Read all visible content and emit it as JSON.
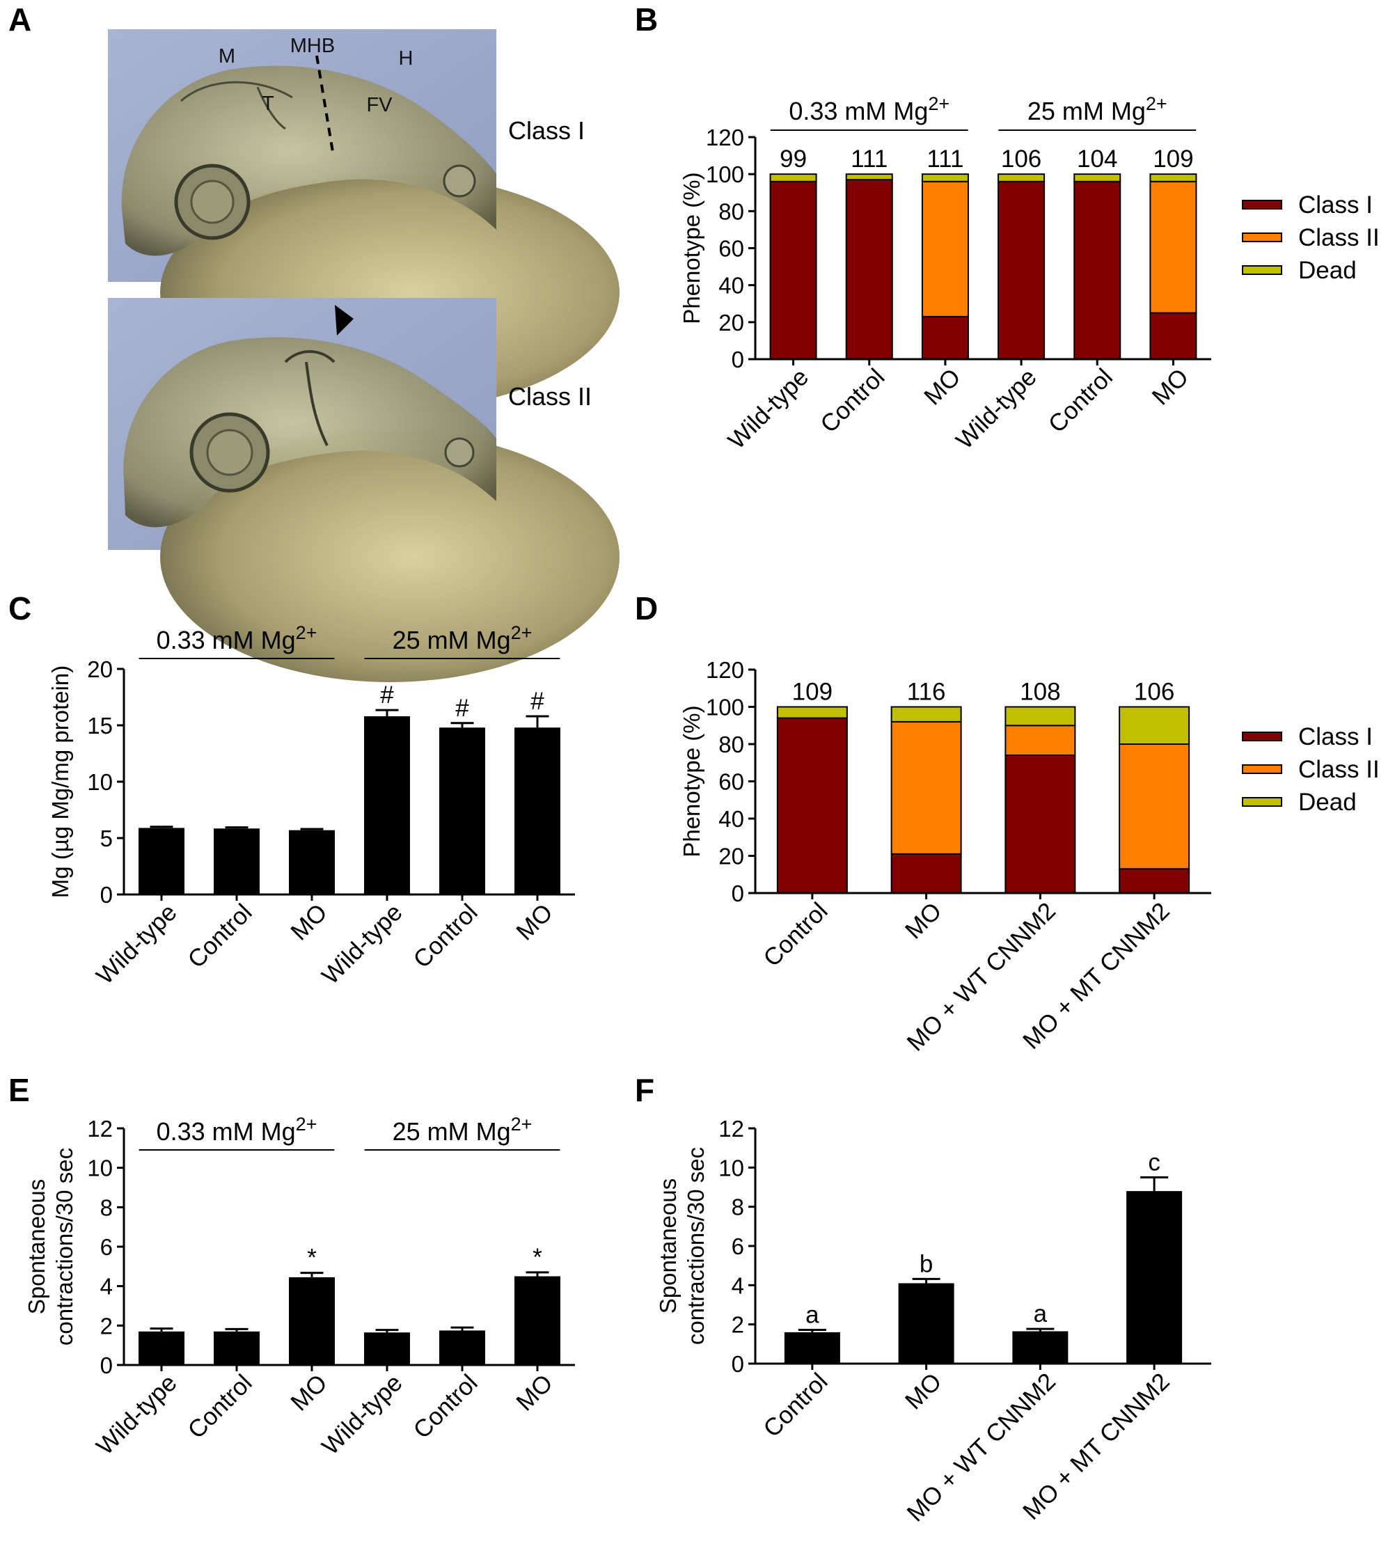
{
  "panel_labels": [
    "A",
    "B",
    "C",
    "D",
    "E",
    "F"
  ],
  "panel_a": {
    "image_labels": [
      "M",
      "MHB",
      "H",
      "T",
      "FV"
    ],
    "class_labels": [
      "Class I",
      "Class II"
    ]
  },
  "colors": {
    "class_i": "#800000",
    "class_ii": "#ff8000",
    "dead": "#c0c000",
    "bar": "#000000"
  },
  "chart_data": [
    {
      "panel": "B",
      "type": "bar",
      "stacked": true,
      "ylabel": "Phenotype (%)",
      "ylim": [
        0,
        120
      ],
      "yticks": [
        0,
        20,
        40,
        60,
        80,
        100,
        120
      ],
      "categories": [
        "Wild-type",
        "Control",
        "MO",
        "Wild-type",
        "Control",
        "MO"
      ],
      "groups": [
        {
          "label": "0.33 mM Mg",
          "sup": "2+"
        },
        {
          "label": "25 mM Mg",
          "sup": "2+"
        }
      ],
      "n_labels": [
        "99",
        "111",
        "111",
        "106",
        "104",
        "109"
      ],
      "series": [
        {
          "name": "Class I",
          "values": [
            96,
            97,
            23,
            96,
            96,
            25
          ]
        },
        {
          "name": "Class II",
          "values": [
            0,
            0,
            73,
            0,
            0,
            71
          ]
        },
        {
          "name": "Dead",
          "values": [
            4,
            3,
            4,
            4,
            4,
            4
          ]
        }
      ],
      "legend": "right"
    },
    {
      "panel": "C",
      "type": "bar",
      "ylabel": "Mg (µg Mg/mg protein)",
      "ylim": [
        0,
        20
      ],
      "yticks": [
        0,
        5,
        10,
        15,
        20
      ],
      "categories": [
        "Wild-type",
        "Control",
        "MO",
        "Wild-type",
        "Control",
        "MO"
      ],
      "groups": [
        {
          "label": "0.33 mM Mg",
          "sup": "2+"
        },
        {
          "label": "25 mM Mg",
          "sup": "2+"
        }
      ],
      "values": [
        5.9,
        5.85,
        5.7,
        15.8,
        14.8,
        14.8
      ],
      "errors": [
        0.1,
        0.1,
        0.1,
        0.55,
        0.4,
        1.0
      ],
      "annotations": [
        "",
        "",
        "",
        "#",
        "#",
        "#"
      ]
    },
    {
      "panel": "D",
      "type": "bar",
      "stacked": true,
      "ylabel": "Phenotype (%)",
      "ylim": [
        0,
        120
      ],
      "yticks": [
        0,
        20,
        40,
        60,
        80,
        100,
        120
      ],
      "categories": [
        "Control",
        "MO",
        "MO + WT CNNM2",
        "MO + MT CNNM2"
      ],
      "n_labels": [
        "109",
        "116",
        "108",
        "106"
      ],
      "series": [
        {
          "name": "Class I",
          "values": [
            94,
            21,
            74,
            13
          ]
        },
        {
          "name": "Class II",
          "values": [
            0,
            71,
            16,
            67
          ]
        },
        {
          "name": "Dead",
          "values": [
            6,
            8,
            10,
            20
          ]
        }
      ],
      "legend": "right"
    },
    {
      "panel": "E",
      "type": "bar",
      "ylabel": [
        "Spontaneous",
        "contractions/30 sec"
      ],
      "ylim": [
        0,
        12
      ],
      "yticks": [
        0,
        2,
        4,
        6,
        8,
        10,
        12
      ],
      "categories": [
        "Wild-type",
        "Control",
        "MO",
        "Wild-type",
        "Control",
        "MO"
      ],
      "groups": [
        {
          "label": "0.33 mM Mg",
          "sup": "2+"
        },
        {
          "label": "25 mM Mg",
          "sup": "2+"
        }
      ],
      "values": [
        1.7,
        1.7,
        4.45,
        1.65,
        1.75,
        4.5
      ],
      "errors": [
        0.15,
        0.12,
        0.22,
        0.13,
        0.15,
        0.2
      ],
      "annotations": [
        "",
        "",
        "*",
        "",
        "",
        "*"
      ]
    },
    {
      "panel": "F",
      "type": "bar",
      "ylabel": [
        "Spontaneous",
        "contractions/30 sec"
      ],
      "ylim": [
        0,
        12
      ],
      "yticks": [
        0,
        2,
        4,
        6,
        8,
        10,
        12
      ],
      "categories": [
        "Control",
        "MO",
        "MO + WT CNNM2",
        "MO + MT CNNM2"
      ],
      "values": [
        1.6,
        4.1,
        1.65,
        8.8
      ],
      "errors": [
        0.12,
        0.22,
        0.12,
        0.7
      ],
      "annotations": [
        "a",
        "b",
        "a",
        "c"
      ]
    }
  ]
}
